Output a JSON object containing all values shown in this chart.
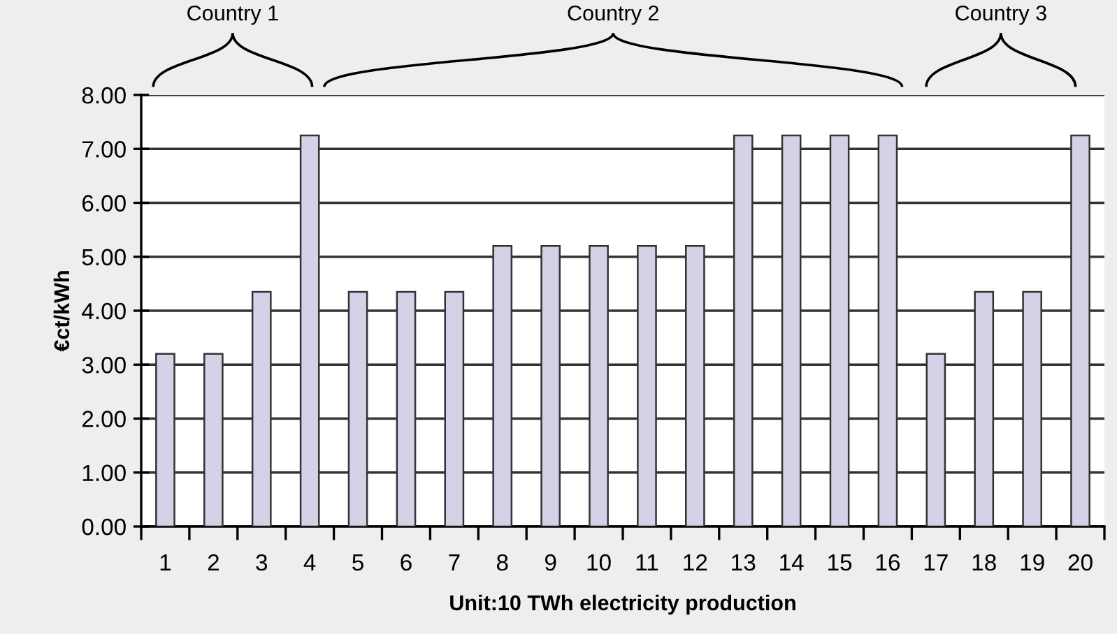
{
  "chart_data": {
    "type": "bar",
    "xlabel": "Unit:10 TWh electricity production",
    "ylabel": "€ct/kWh",
    "categories": [
      "1",
      "2",
      "3",
      "4",
      "5",
      "6",
      "7",
      "8",
      "9",
      "10",
      "11",
      "12",
      "13",
      "14",
      "15",
      "16",
      "17",
      "18",
      "19",
      "20"
    ],
    "values": [
      3.2,
      3.2,
      4.35,
      7.25,
      4.35,
      4.35,
      4.35,
      5.2,
      5.2,
      5.2,
      5.2,
      5.2,
      7.25,
      7.25,
      7.25,
      7.25,
      3.2,
      4.35,
      4.35,
      7.25
    ],
    "color": "#d4d2e6",
    "ylim": [
      0,
      8
    ],
    "yticks": [
      {
        "value": 0,
        "label": "0.00"
      },
      {
        "value": 1,
        "label": "1.00"
      },
      {
        "value": 2,
        "label": "2.00"
      },
      {
        "value": 3,
        "label": "3.00"
      },
      {
        "value": 4,
        "label": "4.00"
      },
      {
        "value": 5,
        "label": "5.00"
      },
      {
        "value": 6,
        "label": "6.00"
      },
      {
        "value": 7,
        "label": "7.00"
      },
      {
        "value": 8,
        "label": "8.00"
      }
    ],
    "grid": "y",
    "annotations": [
      "Country 1",
      "Country 2",
      "Country 3"
    ]
  }
}
